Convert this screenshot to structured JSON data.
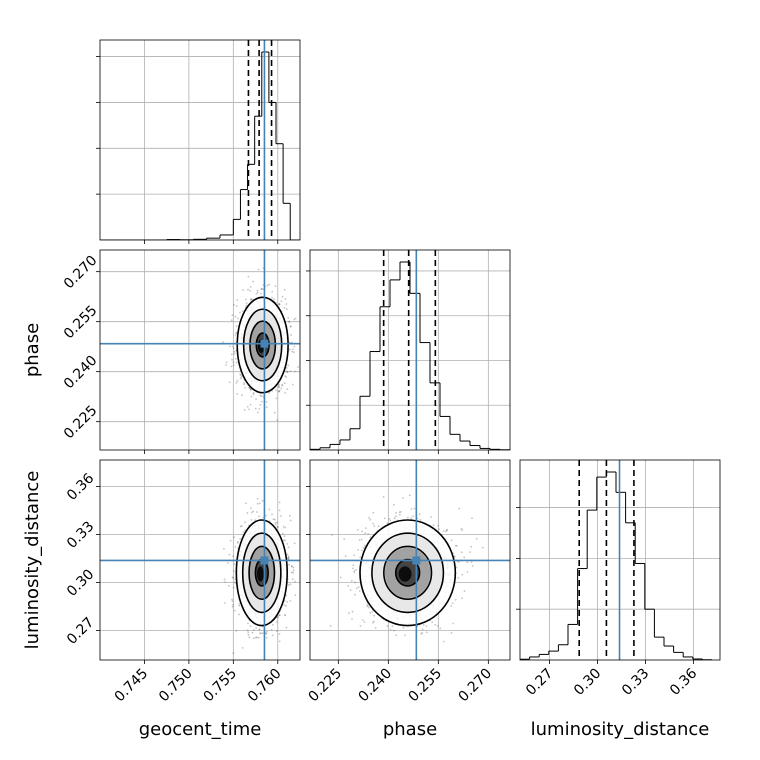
{
  "chart_data": {
    "type": "corner",
    "parameters": [
      {
        "name": "geocent_time",
        "label": "geocent_time",
        "range": [
          0.74,
          0.7625
        ],
        "truth": 0.7585,
        "quantiles": [
          0.7567,
          0.7579,
          0.7593
        ],
        "ticks": [
          0.745,
          0.75,
          0.755,
          0.76
        ],
        "tick_labels": [
          "0.745",
          "0.750",
          "0.755",
          "0.760"
        ]
      },
      {
        "name": "phase",
        "label": "phase",
        "range": [
          0.2165,
          0.2765
        ],
        "truth": 0.2484,
        "quantiles": [
          0.2386,
          0.2461,
          0.2541
        ],
        "ticks": [
          0.225,
          0.24,
          0.255,
          0.27
        ],
        "tick_labels": [
          "0.225",
          "0.240",
          "0.255",
          "0.270"
        ]
      },
      {
        "name": "luminosity_distance",
        "label": "luminosity_distance",
        "range": [
          0.2515,
          0.3765
        ],
        "truth": 0.3137,
        "quantiles": [
          0.2885,
          0.3055,
          0.3227
        ],
        "ticks": [
          0.27,
          0.3,
          0.33,
          0.36
        ],
        "tick_labels": [
          "0.27",
          "0.30",
          "0.33",
          "0.36"
        ]
      }
    ],
    "histograms": [
      {
        "param": "geocent_time",
        "bin_edges": [
          0.74,
          0.7415,
          0.743,
          0.7445,
          0.746,
          0.7475,
          0.749,
          0.7505,
          0.752,
          0.7535,
          0.755,
          0.7558,
          0.7566,
          0.7574,
          0.7582,
          0.759,
          0.7598,
          0.7606,
          0.7614,
          0.7625
        ],
        "counts": [
          0,
          0,
          0,
          0,
          0,
          2,
          1,
          3,
          8,
          22,
          90,
          220,
          330,
          540,
          820,
          600,
          420,
          160,
          0
        ]
      },
      {
        "param": "phase",
        "bin_edges": [
          0.2165,
          0.2195,
          0.2225,
          0.2255,
          0.2285,
          0.2315,
          0.2345,
          0.2375,
          0.2405,
          0.2435,
          0.2465,
          0.2495,
          0.2525,
          0.2555,
          0.2585,
          0.2615,
          0.2645,
          0.2675,
          0.2705,
          0.2735,
          0.2765
        ],
        "counts": [
          3,
          10,
          25,
          45,
          95,
          240,
          440,
          640,
          760,
          840,
          700,
          480,
          300,
          150,
          70,
          40,
          20,
          7,
          3,
          1
        ]
      },
      {
        "param": "luminosity_distance",
        "bin_edges": [
          0.2515,
          0.2575,
          0.2635,
          0.2695,
          0.2755,
          0.2815,
          0.2875,
          0.2935,
          0.2995,
          0.3055,
          0.3115,
          0.3175,
          0.3235,
          0.3295,
          0.3355,
          0.3415,
          0.3475,
          0.3535,
          0.3595,
          0.3655,
          0.3715
        ],
        "counts": [
          3,
          12,
          22,
          35,
          60,
          140,
          360,
          590,
          720,
          740,
          660,
          540,
          380,
          200,
          90,
          55,
          30,
          12,
          4,
          1
        ]
      }
    ],
    "joint_panels": [
      {
        "x_param": "geocent_time",
        "y_param": "phase",
        "center": [
          0.7583,
          0.248
        ],
        "sigma": [
          0.0013,
          0.0065
        ],
        "correlation": 0.05
      },
      {
        "x_param": "geocent_time",
        "y_param": "luminosity_distance",
        "center": [
          0.7582,
          0.306
        ],
        "sigma": [
          0.0013,
          0.015
        ],
        "correlation": 0.0
      },
      {
        "x_param": "phase",
        "y_param": "luminosity_distance",
        "center": [
          0.2458,
          0.306
        ],
        "sigma": [
          0.0065,
          0.015
        ],
        "correlation": 0.0
      }
    ],
    "contour_levels": [
      0.5,
      1.0,
      1.5,
      2.0
    ],
    "grid": true,
    "colors": {
      "truth": "#4682b4",
      "hist": "#000000",
      "quantile": "#000000",
      "grid": "#b0b0b0",
      "density_dark": "#000000",
      "density_light": "#ffffff"
    }
  }
}
